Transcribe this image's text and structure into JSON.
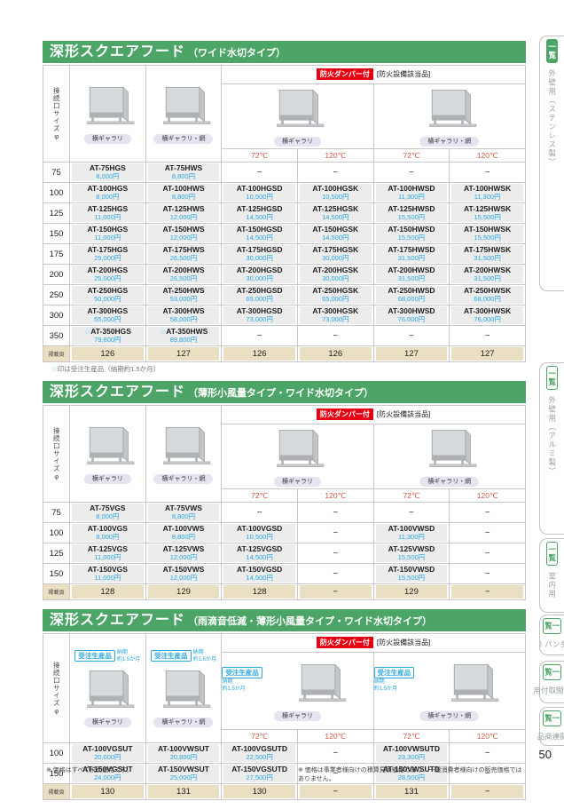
{
  "page_number": "50",
  "footnote_left": "※ 価格はすべて税別価格です。",
  "footnote_right": "※ 価格は事業者様向けの積算見積価格であり、一般消費者様向けの販売価格ではありません。",
  "sidebar": {
    "tabs": [
      {
        "badge": "一覧",
        "label": "外壁用（ステンレス製）",
        "active": true
      },
      {
        "badge": "一覧",
        "label": "外壁用（アルミ製）",
        "active": false
      },
      {
        "badge": "一覧",
        "label": "室内用",
        "active": false
      },
      {
        "badge": "一覧",
        "label": "ダンパー",
        "active": false
      },
      {
        "badge": "一覧",
        "label": "中間取付用",
        "active": false
      },
      {
        "badge": "一覧",
        "label": "関連商品",
        "active": false
      }
    ]
  },
  "common": {
    "size_label": "接続口サイズφ",
    "fire_badge": "防火ダンパー付",
    "fire_note": "[防火設備該当品]",
    "temps": [
      "72℃",
      "120℃",
      "72℃",
      "120℃"
    ],
    "page_row_label": "掲載頁",
    "dash": "−",
    "order_badge": "受注生産品",
    "order_note_line1": "納期",
    "order_note_line2": "約1.5か月",
    "gallery_plain": "横ギャラリ",
    "gallery_mesh": "横ギャラリ・網"
  },
  "sections": [
    {
      "title": "深形スクエアフード",
      "subtitle": "（ワイド水切タイプ）",
      "has_order_badges": false,
      "rows": [
        {
          "size": "75",
          "cells": [
            [
              "AT-75HGS",
              "8,000円"
            ],
            [
              "AT-75HWS",
              "8,800円"
            ],
            null,
            null,
            null,
            null
          ]
        },
        {
          "size": "100",
          "cells": [
            [
              "AT-100HGS",
              "8,000円"
            ],
            [
              "AT-100HWS",
              "8,800円"
            ],
            [
              "AT-100HGSD",
              "10,500円"
            ],
            [
              "AT-100HGSK",
              "10,500円"
            ],
            [
              "AT-100HWSD",
              "11,300円"
            ],
            [
              "AT-100HWSK",
              "11,300円"
            ]
          ]
        },
        {
          "size": "125",
          "cells": [
            [
              "AT-125HGS",
              "11,000円"
            ],
            [
              "AT-125HWS",
              "12,000円"
            ],
            [
              "AT-125HGSD",
              "14,500円"
            ],
            [
              "AT-125HGSK",
              "14,500円"
            ],
            [
              "AT-125HWSD",
              "15,500円"
            ],
            [
              "AT-125HWSK",
              "15,500円"
            ]
          ]
        },
        {
          "size": "150",
          "cells": [
            [
              "AT-150HGS",
              "11,000円"
            ],
            [
              "AT-150HWS",
              "12,000円"
            ],
            [
              "AT-150HGSD",
              "14,500円"
            ],
            [
              "AT-150HGSK",
              "14,500円"
            ],
            [
              "AT-150HWSD",
              "15,500円"
            ],
            [
              "AT-150HWSK",
              "15,500円"
            ]
          ]
        },
        {
          "size": "175",
          "cells": [
            [
              "AT-175HGS",
              "25,000円"
            ],
            [
              "AT-175HWS",
              "26,500円"
            ],
            [
              "AT-175HGSD",
              "30,000円"
            ],
            [
              "AT-175HGSK",
              "30,000円"
            ],
            [
              "AT-175HWSD",
              "31,500円"
            ],
            [
              "AT-175HWSK",
              "31,500円"
            ]
          ]
        },
        {
          "size": "200",
          "cells": [
            [
              "AT-200HGS",
              "25,000円"
            ],
            [
              "AT-200HWS",
              "26,500円"
            ],
            [
              "AT-200HGSD",
              "30,000円"
            ],
            [
              "AT-200HGSK",
              "30,000円"
            ],
            [
              "AT-200HWSD",
              "31,500円"
            ],
            [
              "AT-200HWSK",
              "31,500円"
            ]
          ]
        },
        {
          "size": "250",
          "cells": [
            [
              "AT-250HGS",
              "50,000円"
            ],
            [
              "AT-250HWS",
              "53,000円"
            ],
            [
              "AT-250HGSD",
              "65,000円"
            ],
            [
              "AT-250HGSK",
              "65,000円"
            ],
            [
              "AT-250HWSD",
              "68,000円"
            ],
            [
              "AT-250HWSK",
              "68,000円"
            ]
          ]
        },
        {
          "size": "300",
          "cells": [
            [
              "AT-300HGS",
              "55,000円"
            ],
            [
              "AT-300HWS",
              "58,000円"
            ],
            [
              "AT-300HGSD",
              "73,000円"
            ],
            [
              "AT-300HGSK",
              "73,000円"
            ],
            [
              "AT-300HWSD",
              "76,000円"
            ],
            [
              "AT-300HWSK",
              "76,000円"
            ]
          ]
        },
        {
          "size": "350",
          "cells": [
            [
              "☆AT-350HGS",
              "79,800円"
            ],
            [
              "☆AT-350HWS",
              "89,800円"
            ],
            null,
            null,
            null,
            null
          ]
        }
      ],
      "pages": [
        "126",
        "127",
        "126",
        "126",
        "127",
        "127"
      ],
      "footnote": "☆印は受注生産品（納期約1.5か月）"
    },
    {
      "title": "深形スクエアフード",
      "subtitle": "（薄形小風量タイプ・ワイド水切タイプ）",
      "has_order_badges": false,
      "rows": [
        {
          "size": "75",
          "cells": [
            [
              "AT-75VGS",
              "8,000円"
            ],
            [
              "AT-75VWS",
              "8,800円"
            ],
            null,
            null,
            null,
            null
          ]
        },
        {
          "size": "100",
          "cells": [
            [
              "AT-100VGS",
              "8,000円"
            ],
            [
              "AT-100VWS",
              "8,800円"
            ],
            [
              "AT-100VGSD",
              "10,500円"
            ],
            null,
            [
              "AT-100VWSD",
              "11,300円"
            ],
            null
          ]
        },
        {
          "size": "125",
          "cells": [
            [
              "AT-125VGS",
              "11,000円"
            ],
            [
              "AT-125VWS",
              "12,000円"
            ],
            [
              "AT-125VGSD",
              "14,500円"
            ],
            null,
            [
              "AT-125VWSD",
              "15,500円"
            ],
            null
          ]
        },
        {
          "size": "150",
          "cells": [
            [
              "AT-150VGS",
              "11,000円"
            ],
            [
              "AT-150VWS",
              "12,000円"
            ],
            [
              "AT-150VGSD",
              "14,500円"
            ],
            null,
            [
              "AT-150VWSD",
              "15,500円"
            ],
            null
          ]
        }
      ],
      "pages": [
        "128",
        "129",
        "128",
        "−",
        "129",
        "−"
      ],
      "footnote": null
    },
    {
      "title": "深形スクエアフード",
      "subtitle": "（雨滴音低減・薄形小風量タイプ・ワイド水切タイプ）",
      "has_order_badges": true,
      "rows": [
        {
          "size": "100",
          "cells": [
            [
              "AT-100VGSUT",
              "20,000円"
            ],
            [
              "AT-100VWSUT",
              "20,800円"
            ],
            [
              "AT-100VGSUTD",
              "22,500円"
            ],
            null,
            [
              "AT-100VWSUTD",
              "23,300円"
            ],
            null
          ]
        },
        {
          "size": "150",
          "cells": [
            [
              "AT-150VGSUT",
              "24,000円"
            ],
            [
              "AT-150VWSUT",
              "25,000円"
            ],
            [
              "AT-150VGSUTD",
              "27,500円"
            ],
            null,
            [
              "AT-150VWSUTD",
              "28,500円"
            ],
            null
          ]
        }
      ],
      "pages": [
        "130",
        "131",
        "130",
        "−",
        "131",
        "−"
      ],
      "footnote": null
    }
  ]
}
